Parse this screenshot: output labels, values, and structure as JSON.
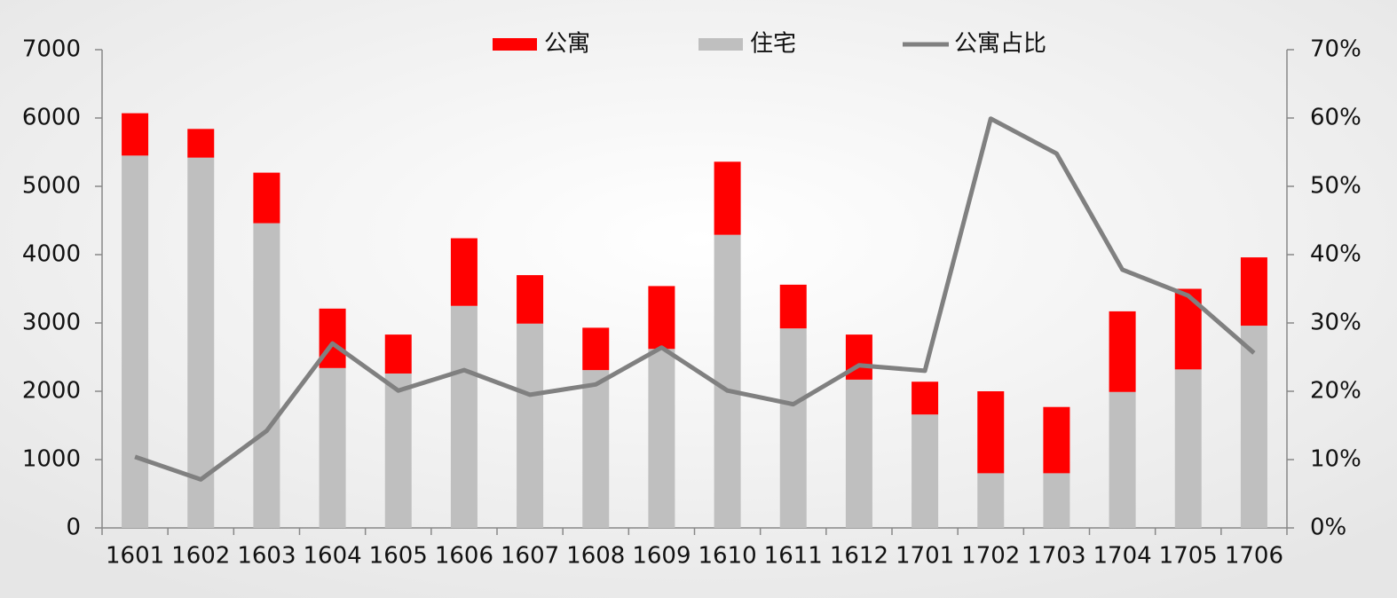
{
  "chart_data": {
    "type": "bar",
    "categories": [
      "1601",
      "1602",
      "1603",
      "1604",
      "1605",
      "1606",
      "1607",
      "1608",
      "1609",
      "1610",
      "1611",
      "1612",
      "1701",
      "1702",
      "1703",
      "1704",
      "1705",
      "1706"
    ],
    "series": [
      {
        "name": "公寓",
        "color": "#ff0000",
        "values": [
          620,
          420,
          740,
          870,
          570,
          990,
          710,
          620,
          920,
          1070,
          640,
          660,
          480,
          1200,
          970,
          1180,
          1180,
          1000
        ]
      },
      {
        "name": "住宅",
        "color": "#bfbfbf",
        "values": [
          5450,
          5420,
          4460,
          2340,
          2260,
          3250,
          2990,
          2310,
          2620,
          4290,
          2920,
          2170,
          1660,
          800,
          800,
          1990,
          2320,
          2960
        ]
      },
      {
        "name": "公寓占比",
        "color": "#808080",
        "type": "line",
        "axis": "y2",
        "values": [
          10.4,
          7.1,
          14.2,
          27.0,
          20.1,
          23.1,
          19.5,
          21.0,
          26.4,
          20.1,
          18.1,
          23.8,
          23.0,
          59.9,
          54.8,
          37.8,
          34.0,
          25.6
        ]
      }
    ],
    "ylim": [
      0,
      7000
    ],
    "yticks": [
      0,
      1000,
      2000,
      3000,
      4000,
      5000,
      6000,
      7000
    ],
    "y2lim": [
      0,
      70
    ],
    "y2ticks": [
      {
        "value": 0,
        "label": "0%"
      },
      {
        "value": 10,
        "label": "10%"
      },
      {
        "value": 20,
        "label": "20%"
      },
      {
        "value": 30,
        "label": "30%"
      },
      {
        "value": 40,
        "label": "40%"
      },
      {
        "value": 50,
        "label": "50%"
      },
      {
        "value": 60,
        "label": "60%"
      },
      {
        "value": 70,
        "label": "70%"
      }
    ],
    "stacked": true
  }
}
